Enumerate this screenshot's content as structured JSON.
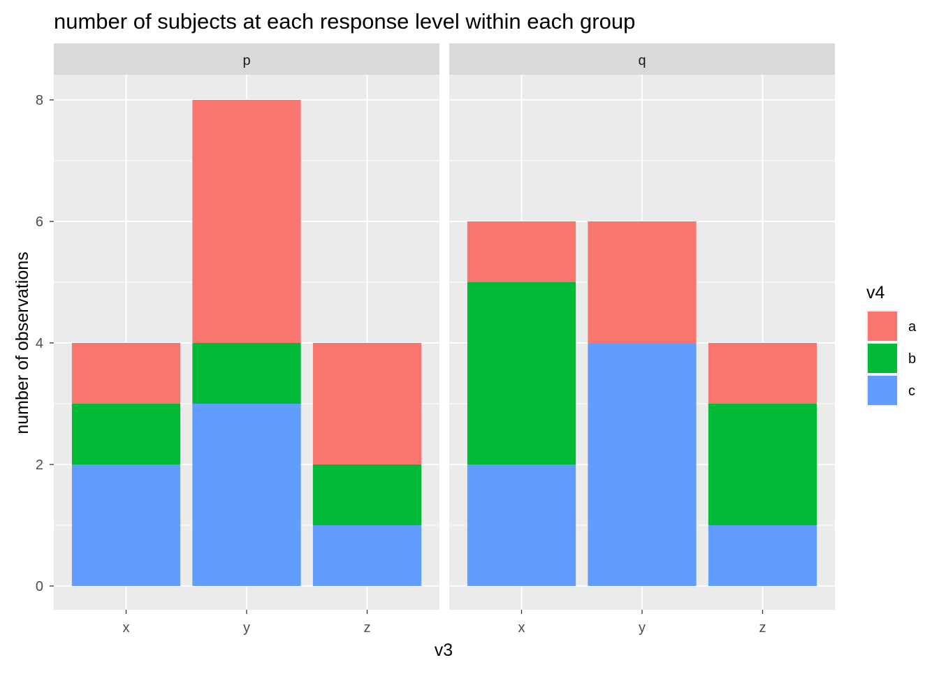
{
  "chart_data": {
    "type": "bar",
    "stacked": true,
    "title": "number of subjects at each response level within each group",
    "xlabel": "v3",
    "ylabel": "number of observations",
    "ylim": [
      0,
      8.4
    ],
    "yticks": [
      "0",
      "2",
      "4",
      "6",
      "8"
    ],
    "categories": [
      "x",
      "y",
      "z"
    ],
    "grid": true,
    "legend": {
      "title": "v4",
      "position": "right",
      "entries": [
        "a",
        "b",
        "c"
      ]
    },
    "colors": {
      "a": "#F8766D",
      "b": "#00BA38",
      "c": "#619CFF"
    },
    "panels": [
      {
        "label": "p",
        "series": [
          {
            "name": "c",
            "values": [
              2,
              3,
              1
            ]
          },
          {
            "name": "b",
            "values": [
              1,
              1,
              1
            ]
          },
          {
            "name": "a",
            "values": [
              1,
              4,
              2
            ]
          }
        ]
      },
      {
        "label": "q",
        "series": [
          {
            "name": "c",
            "values": [
              2,
              4,
              1
            ]
          },
          {
            "name": "b",
            "values": [
              3,
              0,
              2
            ]
          },
          {
            "name": "a",
            "values": [
              1,
              2,
              1
            ]
          }
        ]
      }
    ]
  }
}
